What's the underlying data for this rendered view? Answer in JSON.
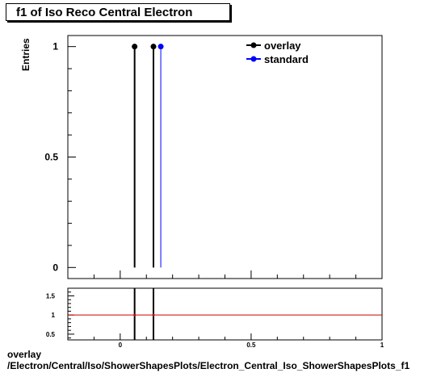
{
  "title": "f1 of Iso Reco Central  Electron",
  "footer": {
    "line1": "overlay",
    "line2": "/Electron/Central/Iso/ShowerShapesPlots/Electron_Central_Iso_ShowerShapesPlots_f1"
  },
  "colors": {
    "overlay": "#000000",
    "standard": "#0000ff",
    "ratio_line": "#cc0000"
  },
  "chart_data": [
    {
      "type": "scatter",
      "ylabel": "Entries",
      "xlim": [
        -0.2,
        1.0
      ],
      "ylim": [
        -0.05,
        1.05
      ],
      "y_ticks": [
        0,
        0.5,
        1
      ],
      "y_tick_labels": [
        "0",
        "0.5",
        "1"
      ],
      "legend_position": "top-right",
      "series": [
        {
          "name": "overlay",
          "x": [
            0.055,
            0.127
          ],
          "y": [
            1,
            1
          ]
        },
        {
          "name": "standard",
          "x": [
            0.155
          ],
          "y": [
            1
          ]
        }
      ]
    },
    {
      "type": "line",
      "xlim": [
        -0.2,
        1.0
      ],
      "ylim": [
        0.35,
        1.7
      ],
      "y_ticks": [
        0.5,
        1,
        1.5
      ],
      "y_tick_labels": [
        "0.5",
        "1",
        "1.5"
      ],
      "x_ticks": [
        0,
        0.5,
        1
      ],
      "x_tick_labels": [
        "0",
        "0.5",
        "1"
      ],
      "reference_y": 1,
      "ratio_points": {
        "x": [
          0.055,
          0.127
        ],
        "y": [
          1,
          1
        ]
      }
    }
  ]
}
